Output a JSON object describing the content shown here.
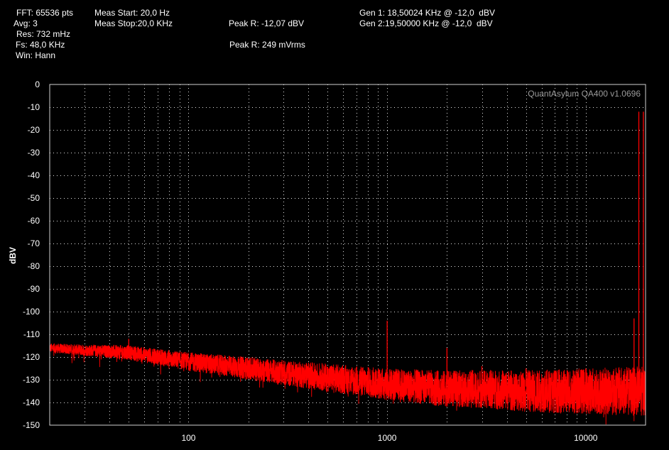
{
  "header": {
    "fft": "FFT: 65536 pts",
    "avg": "Avg: 3",
    "res": "Res: 732 mHz",
    "fs": "Fs: 48,0 KHz",
    "win": "Win: Hann",
    "meas_start": "Meas Start: 20,0 Hz",
    "meas_stop": "Meas Stop:20,0 KHz",
    "peak_r_dbv": "Peak R: -12,07 dBV",
    "peak_r_mvrms": "Peak R: 249 mVrms",
    "gen1": "Gen 1: 18,50024 KHz @ -12,0  dBV",
    "gen2": "Gen 2:19,50000 KHz @ -12,0  dBV"
  },
  "chart_data": {
    "type": "line",
    "title": "",
    "watermark": "QuantAsylum QA400 v1.0696",
    "xlabel": "",
    "ylabel": "dBV",
    "xscale": "log",
    "xlim": [
      20,
      20000
    ],
    "ylim": [
      -150,
      0
    ],
    "x_ticks": [
      100,
      1000,
      10000
    ],
    "x_tick_labels": [
      "100",
      "1000",
      "10000"
    ],
    "y_ticks": [
      0,
      -10,
      -20,
      -30,
      -40,
      -50,
      -60,
      -70,
      -80,
      -90,
      -100,
      -110,
      -120,
      -130,
      -140,
      -150
    ],
    "y_tick_labels": [
      "0",
      "-10",
      "-20",
      "-30",
      "-40",
      "-50",
      "-60",
      "-70",
      "-80",
      "-90",
      "-100",
      "-110",
      "-120",
      "-130",
      "-140",
      "-150"
    ],
    "grid": true,
    "series": [
      {
        "color": "#ff0000",
        "noise_floor": {
          "x": [
            20,
            30,
            50,
            70,
            100,
            200,
            300,
            500,
            1000,
            2000,
            3000,
            5000,
            10000,
            20000
          ],
          "y": [
            -116,
            -117,
            -118,
            -120,
            -122,
            -125,
            -127,
            -129,
            -132,
            -134,
            -134,
            -135,
            -135,
            -135
          ]
        },
        "peaks": {
          "x": [
            50,
            1000,
            2000,
            3000,
            5000,
            10000,
            17500,
            18500,
            19500
          ],
          "y": [
            -112,
            -104,
            -116,
            -124,
            -125,
            -125,
            -103,
            -12,
            -12
          ]
        }
      }
    ]
  }
}
